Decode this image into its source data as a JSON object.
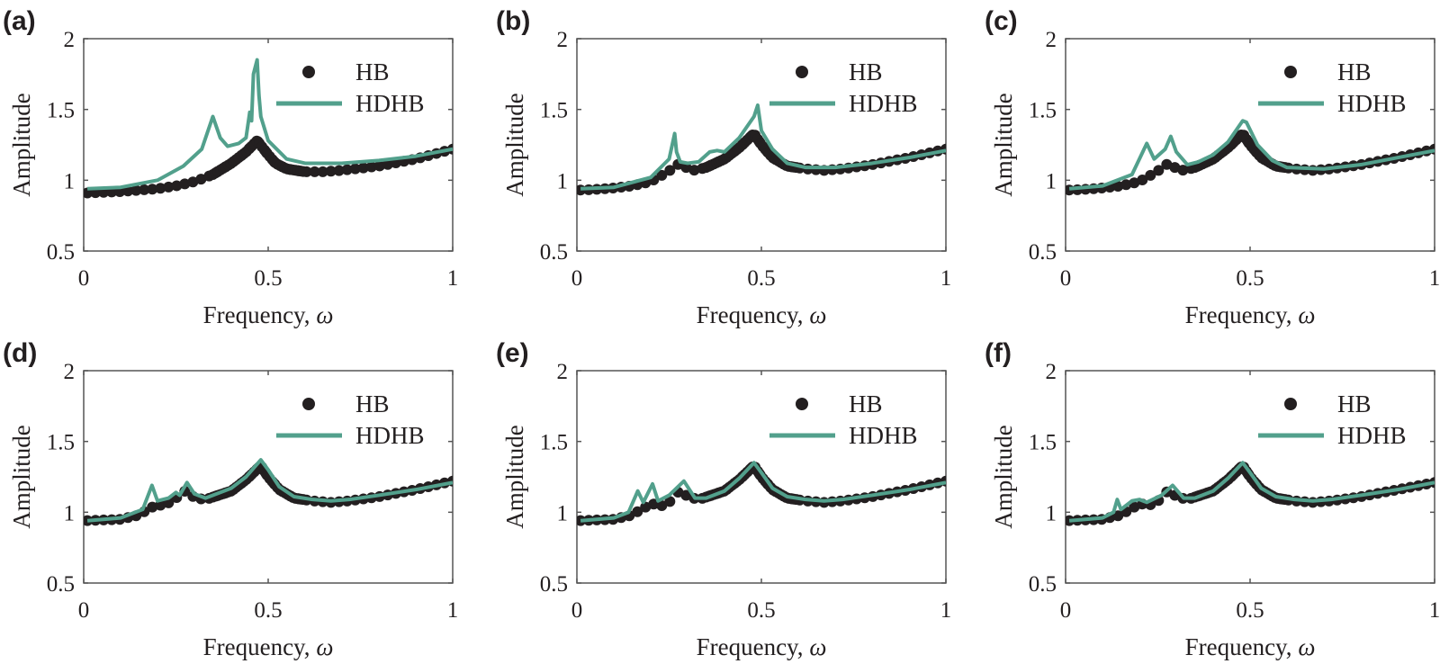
{
  "colors": {
    "HB": "#231f20",
    "HDHB": "#52a08c",
    "axis": "#555555"
  },
  "chart_data": [
    {
      "panel_label": "(a)",
      "type": "line+scatter",
      "xlabel": "Frequency, ",
      "xlabel_symbol": "ω",
      "ylabel": "Amplitude",
      "xlim": [
        0,
        1
      ],
      "ylim": [
        0.5,
        2
      ],
      "xticks": [
        "0",
        "0.5",
        "1"
      ],
      "yticks": [
        "0.5",
        "1",
        "1.5",
        "2"
      ],
      "legend": "top-right",
      "grid": false,
      "series": [
        {
          "name": "HB",
          "marker": "dot",
          "x": [
            0.01,
            0.1,
            0.2,
            0.25,
            0.3,
            0.35,
            0.4,
            0.44,
            0.47,
            0.5,
            0.52,
            0.55,
            0.6,
            0.65,
            0.7,
            0.8,
            0.9,
            1.0
          ],
          "y": [
            0.91,
            0.92,
            0.94,
            0.96,
            0.99,
            1.04,
            1.12,
            1.2,
            1.28,
            1.18,
            1.12,
            1.08,
            1.06,
            1.06,
            1.07,
            1.1,
            1.15,
            1.22
          ]
        },
        {
          "name": "HDHB",
          "marker": "line",
          "x": [
            0.01,
            0.1,
            0.2,
            0.27,
            0.32,
            0.35,
            0.37,
            0.39,
            0.42,
            0.44,
            0.45,
            0.455,
            0.46,
            0.47,
            0.475,
            0.48,
            0.5,
            0.55,
            0.6,
            0.7,
            0.8,
            0.9,
            1.0
          ],
          "y": [
            0.94,
            0.95,
            1.0,
            1.1,
            1.22,
            1.45,
            1.3,
            1.24,
            1.26,
            1.3,
            1.48,
            1.42,
            1.75,
            1.85,
            1.6,
            1.45,
            1.28,
            1.15,
            1.12,
            1.12,
            1.14,
            1.17,
            1.22
          ]
        }
      ]
    },
    {
      "panel_label": "(b)",
      "type": "line+scatter",
      "xlabel": "Frequency, ",
      "xlabel_symbol": "ω",
      "ylabel": "Amplitude",
      "xlim": [
        0,
        1
      ],
      "ylim": [
        0.5,
        2
      ],
      "xticks": [
        "0",
        "0.5",
        "1"
      ],
      "yticks": [
        "0.5",
        "1",
        "1.5",
        "2"
      ],
      "legend": "top-right",
      "grid": false,
      "series": [
        {
          "name": "HB",
          "marker": "dot",
          "x": [
            0.0,
            0.05,
            0.1,
            0.15,
            0.2,
            0.24,
            0.27,
            0.28,
            0.3,
            0.32,
            0.35,
            0.4,
            0.44,
            0.48,
            0.5,
            0.53,
            0.57,
            0.62,
            0.67,
            0.72,
            0.8,
            0.9,
            1.0
          ],
          "y": [
            0.93,
            0.935,
            0.945,
            0.96,
            0.99,
            1.05,
            1.1,
            1.13,
            1.08,
            1.07,
            1.09,
            1.15,
            1.23,
            1.33,
            1.25,
            1.16,
            1.1,
            1.08,
            1.07,
            1.08,
            1.11,
            1.16,
            1.22
          ]
        },
        {
          "name": "HDHB",
          "marker": "line",
          "x": [
            0.01,
            0.1,
            0.2,
            0.25,
            0.265,
            0.27,
            0.28,
            0.3,
            0.33,
            0.36,
            0.38,
            0.4,
            0.44,
            0.48,
            0.49,
            0.5,
            0.53,
            0.57,
            0.62,
            0.7,
            0.8,
            0.9,
            1.0
          ],
          "y": [
            0.94,
            0.95,
            1.02,
            1.15,
            1.33,
            1.2,
            1.13,
            1.12,
            1.13,
            1.2,
            1.21,
            1.2,
            1.3,
            1.45,
            1.53,
            1.35,
            1.22,
            1.12,
            1.09,
            1.09,
            1.12,
            1.16,
            1.21
          ]
        }
      ]
    },
    {
      "panel_label": "(c)",
      "type": "line+scatter",
      "xlabel": "Frequency, ",
      "xlabel_symbol": "ω",
      "ylabel": "Amplitude",
      "xlim": [
        0,
        1
      ],
      "ylim": [
        0.5,
        2
      ],
      "xticks": [
        "0",
        "0.5",
        "1"
      ],
      "yticks": [
        "0.5",
        "1",
        "1.5",
        "2"
      ],
      "legend": "top-right",
      "grid": false,
      "series": [
        {
          "name": "HB",
          "marker": "dot",
          "x": [
            0.0,
            0.05,
            0.1,
            0.15,
            0.2,
            0.24,
            0.27,
            0.28,
            0.3,
            0.32,
            0.35,
            0.4,
            0.44,
            0.48,
            0.5,
            0.53,
            0.57,
            0.62,
            0.67,
            0.72,
            0.8,
            0.9,
            1.0
          ],
          "y": [
            0.93,
            0.935,
            0.945,
            0.96,
            0.99,
            1.05,
            1.1,
            1.13,
            1.08,
            1.07,
            1.09,
            1.15,
            1.23,
            1.33,
            1.25,
            1.16,
            1.1,
            1.08,
            1.07,
            1.08,
            1.11,
            1.16,
            1.22
          ]
        },
        {
          "name": "HDHB",
          "marker": "line",
          "x": [
            0.01,
            0.1,
            0.18,
            0.22,
            0.24,
            0.27,
            0.285,
            0.3,
            0.33,
            0.36,
            0.4,
            0.44,
            0.48,
            0.49,
            0.52,
            0.56,
            0.6,
            0.7,
            0.8,
            0.9,
            1.0
          ],
          "y": [
            0.94,
            0.96,
            1.04,
            1.26,
            1.15,
            1.22,
            1.31,
            1.2,
            1.11,
            1.13,
            1.18,
            1.27,
            1.42,
            1.41,
            1.25,
            1.14,
            1.09,
            1.08,
            1.11,
            1.16,
            1.21
          ]
        }
      ]
    },
    {
      "panel_label": "(d)",
      "type": "line+scatter",
      "xlabel": "Frequency, ",
      "xlabel_symbol": "ω",
      "ylabel": "Amplitude",
      "xlim": [
        0,
        1
      ],
      "ylim": [
        0.5,
        2
      ],
      "xticks": [
        "0",
        "0.5",
        "1"
      ],
      "yticks": [
        "0.5",
        "1",
        "1.5",
        "2"
      ],
      "legend": "top-right",
      "grid": false,
      "series": [
        {
          "name": "HB",
          "marker": "dot",
          "x": [
            0.0,
            0.1,
            0.15,
            0.18,
            0.2,
            0.22,
            0.25,
            0.28,
            0.3,
            0.33,
            0.4,
            0.44,
            0.48,
            0.5,
            0.53,
            0.57,
            0.62,
            0.67,
            0.72,
            0.8,
            0.9,
            1.0
          ],
          "y": [
            0.94,
            0.95,
            0.98,
            1.03,
            1.05,
            1.05,
            1.1,
            1.16,
            1.1,
            1.09,
            1.15,
            1.23,
            1.33,
            1.25,
            1.16,
            1.1,
            1.08,
            1.07,
            1.08,
            1.11,
            1.16,
            1.22
          ]
        },
        {
          "name": "HDHB",
          "marker": "line",
          "x": [
            0.01,
            0.1,
            0.16,
            0.185,
            0.2,
            0.23,
            0.25,
            0.26,
            0.28,
            0.3,
            0.33,
            0.4,
            0.44,
            0.48,
            0.5,
            0.53,
            0.57,
            0.62,
            0.67,
            0.72,
            0.8,
            0.9,
            1.0
          ],
          "y": [
            0.94,
            0.96,
            1.02,
            1.19,
            1.08,
            1.1,
            1.14,
            1.12,
            1.21,
            1.13,
            1.1,
            1.17,
            1.25,
            1.37,
            1.3,
            1.18,
            1.11,
            1.09,
            1.08,
            1.09,
            1.12,
            1.16,
            1.21
          ]
        }
      ]
    },
    {
      "panel_label": "(e)",
      "type": "line+scatter",
      "xlabel": "Frequency, ",
      "xlabel_symbol": "ω",
      "ylabel": "Amplitude",
      "xlim": [
        0,
        1
      ],
      "ylim": [
        0.5,
        2
      ],
      "xticks": [
        "0",
        "0.5",
        "1"
      ],
      "yticks": [
        "0.5",
        "1",
        "1.5",
        "2"
      ],
      "legend": "top-right",
      "grid": false,
      "series": [
        {
          "name": "HB",
          "marker": "dot",
          "x": [
            0.0,
            0.1,
            0.15,
            0.18,
            0.21,
            0.24,
            0.28,
            0.3,
            0.33,
            0.4,
            0.44,
            0.48,
            0.5,
            0.53,
            0.57,
            0.62,
            0.67,
            0.72,
            0.8,
            0.9,
            1.0
          ],
          "y": [
            0.94,
            0.95,
            0.98,
            1.03,
            1.06,
            1.04,
            1.16,
            1.11,
            1.09,
            1.15,
            1.23,
            1.33,
            1.25,
            1.16,
            1.1,
            1.08,
            1.07,
            1.08,
            1.11,
            1.16,
            1.22
          ]
        },
        {
          "name": "HDHB",
          "marker": "line",
          "x": [
            0.01,
            0.1,
            0.14,
            0.165,
            0.18,
            0.205,
            0.22,
            0.25,
            0.29,
            0.32,
            0.35,
            0.4,
            0.44,
            0.48,
            0.5,
            0.53,
            0.57,
            0.62,
            0.67,
            0.72,
            0.8,
            0.9,
            1.0
          ],
          "y": [
            0.94,
            0.96,
            1.0,
            1.15,
            1.07,
            1.2,
            1.08,
            1.12,
            1.22,
            1.1,
            1.1,
            1.15,
            1.24,
            1.35,
            1.28,
            1.17,
            1.11,
            1.09,
            1.08,
            1.09,
            1.12,
            1.16,
            1.21
          ]
        }
      ]
    },
    {
      "panel_label": "(f)",
      "type": "line+scatter",
      "xlabel": "Frequency, ",
      "xlabel_symbol": "ω",
      "ylabel": "Amplitude",
      "xlim": [
        0,
        1
      ],
      "ylim": [
        0.5,
        2
      ],
      "xticks": [
        "0",
        "0.5",
        "1"
      ],
      "yticks": [
        "0.5",
        "1",
        "1.5",
        "2"
      ],
      "legend": "top-right",
      "grid": false,
      "series": [
        {
          "name": "HB",
          "marker": "dot",
          "x": [
            0.0,
            0.1,
            0.15,
            0.18,
            0.21,
            0.24,
            0.28,
            0.3,
            0.33,
            0.4,
            0.44,
            0.48,
            0.5,
            0.53,
            0.57,
            0.62,
            0.67,
            0.72,
            0.8,
            0.9,
            1.0
          ],
          "y": [
            0.94,
            0.95,
            0.98,
            1.03,
            1.06,
            1.05,
            1.16,
            1.11,
            1.09,
            1.15,
            1.23,
            1.33,
            1.25,
            1.16,
            1.1,
            1.08,
            1.07,
            1.08,
            1.11,
            1.16,
            1.21
          ]
        },
        {
          "name": "HDHB",
          "marker": "line",
          "x": [
            0.01,
            0.1,
            0.13,
            0.14,
            0.15,
            0.18,
            0.2,
            0.22,
            0.26,
            0.29,
            0.32,
            0.35,
            0.4,
            0.44,
            0.48,
            0.5,
            0.53,
            0.57,
            0.62,
            0.67,
            0.72,
            0.8,
            0.9,
            1.0
          ],
          "y": [
            0.94,
            0.96,
            1.0,
            1.09,
            1.02,
            1.08,
            1.09,
            1.07,
            1.12,
            1.19,
            1.1,
            1.1,
            1.15,
            1.24,
            1.35,
            1.28,
            1.17,
            1.11,
            1.09,
            1.08,
            1.09,
            1.12,
            1.16,
            1.21
          ]
        }
      ]
    }
  ]
}
